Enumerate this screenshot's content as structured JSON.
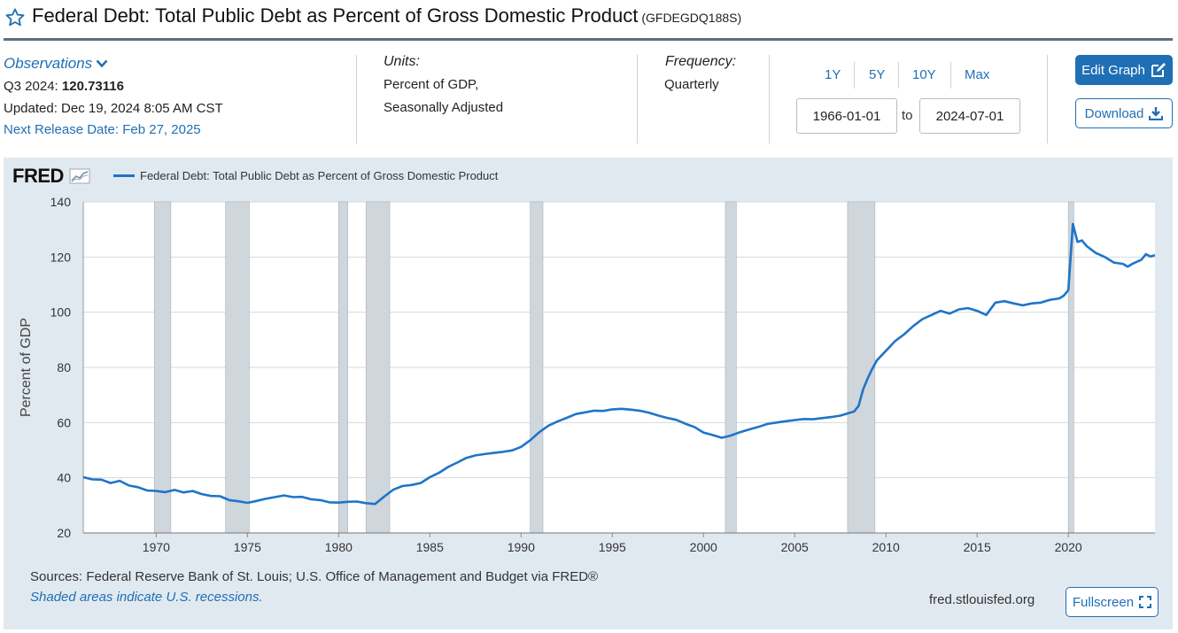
{
  "header": {
    "title": "Federal Debt: Total Public Debt as Percent of Gross Domestic Product",
    "series_id": "(GFDEGDQ188S)"
  },
  "observations": {
    "toggle_label": "Observations",
    "period_label": "Q3 2024:",
    "value": "120.73116",
    "updated": "Updated: Dec 19, 2024 8:05 AM CST",
    "next_release": "Next Release Date: Feb 27, 2025"
  },
  "units": {
    "label": "Units:",
    "line1": "Percent of GDP,",
    "line2": "Seasonally Adjusted"
  },
  "frequency": {
    "label": "Frequency:",
    "value": "Quarterly"
  },
  "range": {
    "buttons": [
      "1Y",
      "5Y",
      "10Y",
      "Max"
    ],
    "start": "1966-01-01",
    "to_label": "to",
    "end": "2024-07-01"
  },
  "actions": {
    "edit_graph": "Edit Graph",
    "download": "Download",
    "fullscreen": "Fullscreen"
  },
  "footer": {
    "sources": "Sources: Federal Reserve Bank of St. Louis; U.S. Office of Management and Budget via FRED®",
    "recession_note": "Shaded areas indicate U.S. recessions.",
    "url": "fred.stlouisfed.org"
  },
  "logo": {
    "text": "FRED"
  },
  "colors": {
    "accent": "#1f6fb5",
    "series": "#1f74c8",
    "panel": "#e1e9f0",
    "recession": "#cfd6dc"
  },
  "chart_data": {
    "type": "line",
    "legend": "Federal Debt: Total Public Debt as Percent of Gross Domestic Product",
    "ylabel": "Percent of GDP",
    "ylim": [
      20,
      140
    ],
    "xlim": [
      1966.0,
      2024.75
    ],
    "yticks": [
      20,
      40,
      60,
      80,
      100,
      120,
      140
    ],
    "xticks": [
      1970,
      1975,
      1980,
      1985,
      1990,
      1995,
      2000,
      2005,
      2010,
      2015,
      2020
    ],
    "recessions": [
      [
        1969.9,
        1970.8
      ],
      [
        1973.8,
        1975.1
      ],
      [
        1980.0,
        1980.5
      ],
      [
        1981.5,
        1982.8
      ],
      [
        1990.5,
        1991.2
      ],
      [
        2001.2,
        2001.8
      ],
      [
        2007.9,
        2009.4
      ],
      [
        2020.0,
        2020.3
      ]
    ],
    "x": [
      1966.0,
      1966.5,
      1967.0,
      1967.5,
      1968.0,
      1968.5,
      1969.0,
      1969.5,
      1970.0,
      1970.5,
      1971.0,
      1971.5,
      1972.0,
      1972.5,
      1973.0,
      1973.5,
      1974.0,
      1974.5,
      1975.0,
      1975.5,
      1976.0,
      1976.5,
      1977.0,
      1977.5,
      1978.0,
      1978.5,
      1979.0,
      1979.5,
      1980.0,
      1980.5,
      1981.0,
      1981.5,
      1982.0,
      1982.5,
      1983.0,
      1983.5,
      1984.0,
      1984.5,
      1985.0,
      1985.5,
      1986.0,
      1986.5,
      1987.0,
      1987.5,
      1988.0,
      1988.5,
      1989.0,
      1989.5,
      1990.0,
      1990.5,
      1991.0,
      1991.5,
      1992.0,
      1992.5,
      1993.0,
      1993.5,
      1994.0,
      1994.5,
      1995.0,
      1995.5,
      1996.0,
      1996.5,
      1997.0,
      1997.5,
      1998.0,
      1998.5,
      1999.0,
      1999.5,
      2000.0,
      2000.5,
      2001.0,
      2001.5,
      2002.0,
      2002.5,
      2003.0,
      2003.5,
      2004.0,
      2004.5,
      2005.0,
      2005.5,
      2006.0,
      2006.5,
      2007.0,
      2007.5,
      2008.0,
      2008.25,
      2008.5,
      2008.75,
      2009.0,
      2009.25,
      2009.5,
      2010.0,
      2010.5,
      2011.0,
      2011.5,
      2012.0,
      2012.5,
      2013.0,
      2013.5,
      2014.0,
      2014.5,
      2015.0,
      2015.5,
      2016.0,
      2016.5,
      2017.0,
      2017.5,
      2018.0,
      2018.5,
      2019.0,
      2019.5,
      2019.75,
      2020.0,
      2020.25,
      2020.5,
      2020.75,
      2021.0,
      2021.5,
      2022.0,
      2022.5,
      2023.0,
      2023.25,
      2023.5,
      2024.0,
      2024.25,
      2024.5,
      2024.75
    ],
    "values": [
      40.2,
      39.4,
      39.3,
      38.1,
      38.9,
      37.2,
      36.6,
      35.4,
      35.2,
      34.8,
      35.6,
      34.7,
      35.2,
      34.1,
      33.4,
      33.3,
      31.9,
      31.5,
      30.9,
      31.6,
      32.4,
      33.0,
      33.6,
      33.0,
      33.1,
      32.2,
      31.9,
      31.1,
      31.0,
      31.3,
      31.4,
      30.8,
      30.5,
      33.2,
      35.7,
      37.0,
      37.4,
      38.1,
      40.2,
      41.8,
      43.9,
      45.5,
      47.2,
      48.1,
      48.6,
      49.0,
      49.4,
      49.9,
      51.2,
      53.6,
      56.5,
      58.9,
      60.4,
      61.7,
      63.1,
      63.7,
      64.3,
      64.2,
      64.8,
      65.0,
      64.7,
      64.3,
      63.6,
      62.6,
      61.7,
      61.0,
      59.6,
      58.4,
      56.4,
      55.5,
      54.5,
      55.3,
      56.5,
      57.5,
      58.4,
      59.5,
      60.0,
      60.5,
      60.9,
      61.3,
      61.2,
      61.6,
      62.0,
      62.5,
      63.5,
      64.0,
      66.0,
      72.0,
      76.0,
      79.5,
      82.5,
      86.0,
      89.5,
      92.0,
      95.0,
      97.5,
      99.0,
      100.5,
      99.5,
      101.0,
      101.5,
      100.5,
      99.0,
      103.5,
      104.0,
      103.2,
      102.5,
      103.2,
      103.5,
      104.5,
      105.0,
      106.0,
      108.0,
      132.0,
      125.5,
      126.0,
      124.0,
      121.5,
      120.0,
      118.0,
      117.5,
      116.5,
      117.5,
      119.0,
      121.0,
      120.2,
      120.7
    ]
  }
}
